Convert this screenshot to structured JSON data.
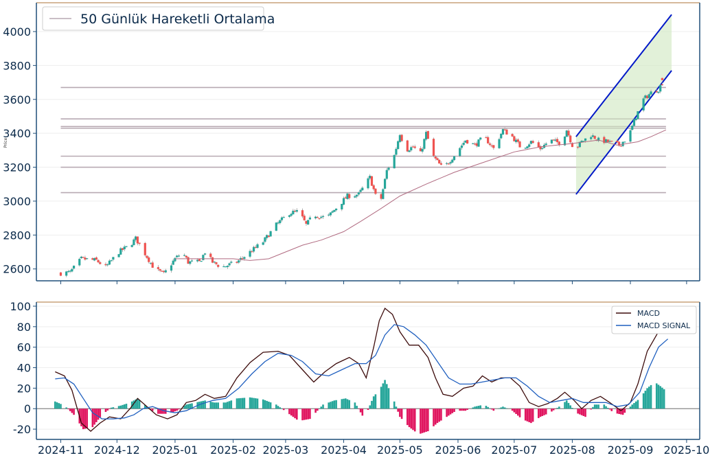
{
  "colors": {
    "axis": "#1f4e79",
    "text": "#0b2a4a",
    "grid": "#eeeeee",
    "top_border": "#c8a27a",
    "up": "#26a69a",
    "down": "#ef5350",
    "ma": "#b06a80",
    "level": "#b7a9b2",
    "channel_line": "#0018c8",
    "channel_fill": "#cfe8c0",
    "macd": "#3b0a0a",
    "signal": "#1f5fbf",
    "hist_pos": "#26a69a",
    "hist_neg": "#e0155f",
    "zero": "#888888"
  },
  "chart_data": [
    {
      "type": "candlestick",
      "ylabel": "Price",
      "ylim": [
        2530,
        4170
      ],
      "yticks": [
        2600,
        2800,
        3000,
        3200,
        3400,
        3600,
        3800,
        4000
      ],
      "legend": {
        "entries": [
          "50 Günlük Hareketli Ortalama"
        ],
        "placement": "top-left"
      },
      "horizontal_levels": [
        3670,
        3485,
        3440,
        3430,
        3265,
        3200,
        3050
      ],
      "anchors": [
        [
          "2024-11-01",
          2575
        ],
        [
          "2024-11-06",
          2580
        ],
        [
          "2024-11-12",
          2660
        ],
        [
          "2024-11-20",
          2650
        ],
        [
          "2024-11-25",
          2610
        ],
        [
          "2024-12-02",
          2700
        ],
        [
          "2024-12-08",
          2740
        ],
        [
          "2024-12-11",
          2780
        ],
        [
          "2024-12-16",
          2690
        ],
        [
          "2024-12-21",
          2600
        ],
        [
          "2024-12-26",
          2570
        ],
        [
          "2025-01-01",
          2660
        ],
        [
          "2025-01-05",
          2700
        ],
        [
          "2025-01-08",
          2640
        ],
        [
          "2025-01-14",
          2640
        ],
        [
          "2025-01-17",
          2700
        ],
        [
          "2025-01-21",
          2640
        ],
        [
          "2025-01-26",
          2610
        ],
        [
          "2025-02-03",
          2640
        ],
        [
          "2025-02-10",
          2700
        ],
        [
          "2025-02-17",
          2760
        ],
        [
          "2025-02-24",
          2860
        ],
        [
          "2025-03-03",
          2930
        ],
        [
          "2025-03-08",
          2940
        ],
        [
          "2025-03-12",
          2860
        ],
        [
          "2025-03-16",
          2920
        ],
        [
          "2025-03-23",
          2900
        ],
        [
          "2025-03-28",
          2960
        ],
        [
          "2025-04-03",
          3030
        ],
        [
          "2025-04-09",
          3040
        ],
        [
          "2025-04-15",
          3140
        ],
        [
          "2025-04-20",
          2960
        ],
        [
          "2025-04-24",
          3180
        ],
        [
          "2025-04-28",
          3270
        ],
        [
          "2025-05-01",
          3400
        ],
        [
          "2025-05-04",
          3300
        ],
        [
          "2025-05-08",
          3320
        ],
        [
          "2025-05-12",
          3280
        ],
        [
          "2025-05-15",
          3400
        ],
        [
          "2025-05-19",
          3260
        ],
        [
          "2025-05-24",
          3190
        ],
        [
          "2025-05-30",
          3270
        ],
        [
          "2025-06-05",
          3360
        ],
        [
          "2025-06-10",
          3330
        ],
        [
          "2025-06-15",
          3380
        ],
        [
          "2025-06-20",
          3310
        ],
        [
          "2025-06-25",
          3420
        ],
        [
          "2025-06-30",
          3380
        ],
        [
          "2025-07-05",
          3310
        ],
        [
          "2025-07-10",
          3350
        ],
        [
          "2025-07-15",
          3310
        ],
        [
          "2025-07-20",
          3360
        ],
        [
          "2025-07-26",
          3340
        ],
        [
          "2025-07-29",
          3420
        ],
        [
          "2025-08-02",
          3300
        ],
        [
          "2025-08-06",
          3350
        ],
        [
          "2025-08-11",
          3390
        ],
        [
          "2025-08-15",
          3360
        ],
        [
          "2025-08-20",
          3350
        ],
        [
          "2025-08-26",
          3330
        ],
        [
          "2025-08-31",
          3380
        ],
        [
          "2025-09-04",
          3500
        ],
        [
          "2025-09-08",
          3600
        ],
        [
          "2025-09-12",
          3640
        ],
        [
          "2025-09-16",
          3660
        ],
        [
          "2025-09-18",
          3700
        ]
      ],
      "moving_average_50": [
        [
          "2025-01-01",
          2660
        ],
        [
          "2025-02-01",
          2660
        ],
        [
          "2025-02-10",
          2650
        ],
        [
          "2025-02-20",
          2660
        ],
        [
          "2025-03-01",
          2700
        ],
        [
          "2025-03-10",
          2740
        ],
        [
          "2025-03-20",
          2770
        ],
        [
          "2025-04-01",
          2820
        ],
        [
          "2025-04-10",
          2880
        ],
        [
          "2025-04-20",
          2950
        ],
        [
          "2025-05-01",
          3030
        ],
        [
          "2025-05-15",
          3100
        ],
        [
          "2025-05-30",
          3170
        ],
        [
          "2025-06-15",
          3230
        ],
        [
          "2025-07-01",
          3290
        ],
        [
          "2025-07-15",
          3320
        ],
        [
          "2025-08-01",
          3340
        ],
        [
          "2025-08-15",
          3360
        ],
        [
          "2025-08-25",
          3330
        ],
        [
          "2025-09-05",
          3350
        ],
        [
          "2025-09-12",
          3380
        ],
        [
          "2025-09-20",
          3420
        ]
      ],
      "channel": {
        "upper": [
          [
            "2025-08-03",
            3380
          ],
          [
            "2025-09-23",
            4100
          ]
        ],
        "lower": [
          [
            "2025-08-03",
            3040
          ],
          [
            "2025-09-23",
            3770
          ]
        ]
      },
      "last_point": [
        "2025-09-18",
        3720
      ]
    },
    {
      "type": "line+bar",
      "ylim": [
        -30,
        104
      ],
      "yticks": [
        -20,
        0,
        20,
        40,
        60,
        80,
        100
      ],
      "legend": {
        "entries": [
          "MACD",
          "MACD SIGNAL"
        ],
        "placement": "top-right"
      },
      "xticks": [
        "2024-11",
        "2024-12",
        "2025-01",
        "2025-02",
        "2025-03",
        "2025-04",
        "2025-05",
        "2025-06",
        "2025-07",
        "2025-08",
        "2025-09",
        "2025-10"
      ],
      "macd": [
        [
          "2024-10-29",
          36
        ],
        [
          "2024-11-03",
          32
        ],
        [
          "2024-11-07",
          18
        ],
        [
          "2024-11-12",
          -14
        ],
        [
          "2024-11-17",
          -22
        ],
        [
          "2024-11-22",
          -14
        ],
        [
          "2024-11-27",
          -8
        ],
        [
          "2024-12-03",
          -10
        ],
        [
          "2024-12-08",
          0
        ],
        [
          "2024-12-12",
          10
        ],
        [
          "2024-12-17",
          2
        ],
        [
          "2024-12-22",
          -6
        ],
        [
          "2024-12-28",
          -10
        ],
        [
          "2025-01-02",
          -6
        ],
        [
          "2025-01-07",
          6
        ],
        [
          "2025-01-12",
          8
        ],
        [
          "2025-01-17",
          14
        ],
        [
          "2025-01-22",
          10
        ],
        [
          "2025-01-28",
          12
        ],
        [
          "2025-02-03",
          30
        ],
        [
          "2025-02-10",
          45
        ],
        [
          "2025-02-17",
          55
        ],
        [
          "2025-02-25",
          56
        ],
        [
          "2025-03-03",
          52
        ],
        [
          "2025-03-10",
          38
        ],
        [
          "2025-03-16",
          26
        ],
        [
          "2025-03-22",
          36
        ],
        [
          "2025-03-28",
          44
        ],
        [
          "2025-04-04",
          50
        ],
        [
          "2025-04-09",
          44
        ],
        [
          "2025-04-13",
          30
        ],
        [
          "2025-04-17",
          60
        ],
        [
          "2025-04-20",
          86
        ],
        [
          "2025-04-23",
          98
        ],
        [
          "2025-04-27",
          92
        ],
        [
          "2025-05-01",
          75
        ],
        [
          "2025-05-06",
          62
        ],
        [
          "2025-05-11",
          62
        ],
        [
          "2025-05-16",
          50
        ],
        [
          "2025-05-20",
          30
        ],
        [
          "2025-05-24",
          14
        ],
        [
          "2025-05-29",
          12
        ],
        [
          "2025-06-04",
          20
        ],
        [
          "2025-06-09",
          22
        ],
        [
          "2025-06-14",
          32
        ],
        [
          "2025-06-19",
          26
        ],
        [
          "2025-06-24",
          30
        ],
        [
          "2025-06-29",
          30
        ],
        [
          "2025-07-04",
          22
        ],
        [
          "2025-07-09",
          6
        ],
        [
          "2025-07-14",
          2
        ],
        [
          "2025-07-19",
          5
        ],
        [
          "2025-07-24",
          10
        ],
        [
          "2025-07-28",
          16
        ],
        [
          "2025-08-02",
          8
        ],
        [
          "2025-08-06",
          0
        ],
        [
          "2025-08-11",
          8
        ],
        [
          "2025-08-16",
          12
        ],
        [
          "2025-08-21",
          6
        ],
        [
          "2025-08-27",
          -2
        ],
        [
          "2025-09-01",
          6
        ],
        [
          "2025-09-05",
          24
        ],
        [
          "2025-09-10",
          56
        ],
        [
          "2025-09-15",
          72
        ],
        [
          "2025-09-20",
          88
        ]
      ],
      "signal": [
        [
          "2024-10-29",
          29
        ],
        [
          "2024-11-03",
          30
        ],
        [
          "2024-11-08",
          24
        ],
        [
          "2024-11-13",
          10
        ],
        [
          "2024-11-18",
          -4
        ],
        [
          "2024-11-23",
          -10
        ],
        [
          "2024-11-29",
          -10
        ],
        [
          "2024-12-05",
          -9
        ],
        [
          "2024-12-10",
          -6
        ],
        [
          "2024-12-15",
          0
        ],
        [
          "2024-12-20",
          2
        ],
        [
          "2024-12-26",
          -2
        ],
        [
          "2025-01-01",
          -4
        ],
        [
          "2025-01-07",
          -2
        ],
        [
          "2025-01-14",
          4
        ],
        [
          "2025-01-21",
          8
        ],
        [
          "2025-01-28",
          10
        ],
        [
          "2025-02-04",
          20
        ],
        [
          "2025-02-11",
          34
        ],
        [
          "2025-02-18",
          46
        ],
        [
          "2025-02-25",
          54
        ],
        [
          "2025-03-04",
          52
        ],
        [
          "2025-03-10",
          46
        ],
        [
          "2025-03-17",
          34
        ],
        [
          "2025-03-24",
          32
        ],
        [
          "2025-03-31",
          38
        ],
        [
          "2025-04-07",
          44
        ],
        [
          "2025-04-13",
          44
        ],
        [
          "2025-04-18",
          52
        ],
        [
          "2025-04-23",
          72
        ],
        [
          "2025-04-28",
          82
        ],
        [
          "2025-05-03",
          80
        ],
        [
          "2025-05-09",
          72
        ],
        [
          "2025-05-15",
          62
        ],
        [
          "2025-05-21",
          46
        ],
        [
          "2025-05-27",
          30
        ],
        [
          "2025-06-02",
          24
        ],
        [
          "2025-06-08",
          24
        ],
        [
          "2025-06-14",
          26
        ],
        [
          "2025-06-20",
          28
        ],
        [
          "2025-06-26",
          30
        ],
        [
          "2025-07-02",
          30
        ],
        [
          "2025-07-08",
          22
        ],
        [
          "2025-07-14",
          12
        ],
        [
          "2025-07-20",
          6
        ],
        [
          "2025-07-26",
          8
        ],
        [
          "2025-08-01",
          10
        ],
        [
          "2025-08-07",
          6
        ],
        [
          "2025-08-13",
          6
        ],
        [
          "2025-08-19",
          6
        ],
        [
          "2025-08-25",
          2
        ],
        [
          "2025-08-31",
          4
        ],
        [
          "2025-09-06",
          16
        ],
        [
          "2025-09-11",
          40
        ],
        [
          "2025-09-16",
          60
        ],
        [
          "2025-09-21",
          68
        ]
      ],
      "histogram": [
        [
          "2024-10-29",
          7
        ],
        [
          "2024-11-03",
          3
        ],
        [
          "2024-11-08",
          -6
        ],
        [
          "2024-11-13",
          -20
        ],
        [
          "2024-11-18",
          -18
        ],
        [
          "2024-11-23",
          -6
        ],
        [
          "2024-11-28",
          1
        ],
        [
          "2024-12-03",
          3
        ],
        [
          "2024-12-08",
          6
        ],
        [
          "2024-12-12",
          10
        ],
        [
          "2024-12-17",
          2
        ],
        [
          "2024-12-22",
          -5
        ],
        [
          "2024-12-28",
          -5
        ],
        [
          "2025-01-02",
          -2
        ],
        [
          "2025-01-07",
          4
        ],
        [
          "2025-01-12",
          6
        ],
        [
          "2025-01-17",
          8
        ],
        [
          "2025-01-22",
          6
        ],
        [
          "2025-01-28",
          6
        ],
        [
          "2025-02-03",
          10
        ],
        [
          "2025-02-10",
          11
        ],
        [
          "2025-02-17",
          9
        ],
        [
          "2025-02-24",
          4
        ],
        [
          "2025-03-02",
          -4
        ],
        [
          "2025-03-08",
          -12
        ],
        [
          "2025-03-14",
          -10
        ],
        [
          "2025-03-21",
          4
        ],
        [
          "2025-03-27",
          8
        ],
        [
          "2025-04-02",
          10
        ],
        [
          "2025-04-07",
          6
        ],
        [
          "2025-04-12",
          -10
        ],
        [
          "2025-04-17",
          12
        ],
        [
          "2025-04-20",
          18
        ],
        [
          "2025-04-23",
          28
        ],
        [
          "2025-04-27",
          12
        ],
        [
          "2025-05-01",
          -8
        ],
        [
          "2025-05-06",
          -18
        ],
        [
          "2025-05-11",
          -25
        ],
        [
          "2025-05-16",
          -22
        ],
        [
          "2025-05-21",
          -14
        ],
        [
          "2025-05-26",
          -8
        ],
        [
          "2025-05-31",
          -2
        ],
        [
          "2025-06-05",
          -2
        ],
        [
          "2025-06-10",
          2
        ],
        [
          "2025-06-15",
          4
        ],
        [
          "2025-06-20",
          -2
        ],
        [
          "2025-06-25",
          2
        ],
        [
          "2025-06-30",
          -2
        ],
        [
          "2025-07-05",
          -10
        ],
        [
          "2025-07-10",
          -14
        ],
        [
          "2025-07-15",
          -8
        ],
        [
          "2025-07-20",
          -4
        ],
        [
          "2025-07-25",
          2
        ],
        [
          "2025-07-29",
          8
        ],
        [
          "2025-08-03",
          -4
        ],
        [
          "2025-08-08",
          -8
        ],
        [
          "2025-08-13",
          4
        ],
        [
          "2025-08-18",
          4
        ],
        [
          "2025-08-23",
          -4
        ],
        [
          "2025-08-28",
          -6
        ],
        [
          "2025-09-02",
          4
        ],
        [
          "2025-09-06",
          10
        ],
        [
          "2025-09-10",
          20
        ],
        [
          "2025-09-14",
          26
        ],
        [
          "2025-09-17",
          22
        ],
        [
          "2025-09-21",
          16
        ]
      ]
    }
  ]
}
